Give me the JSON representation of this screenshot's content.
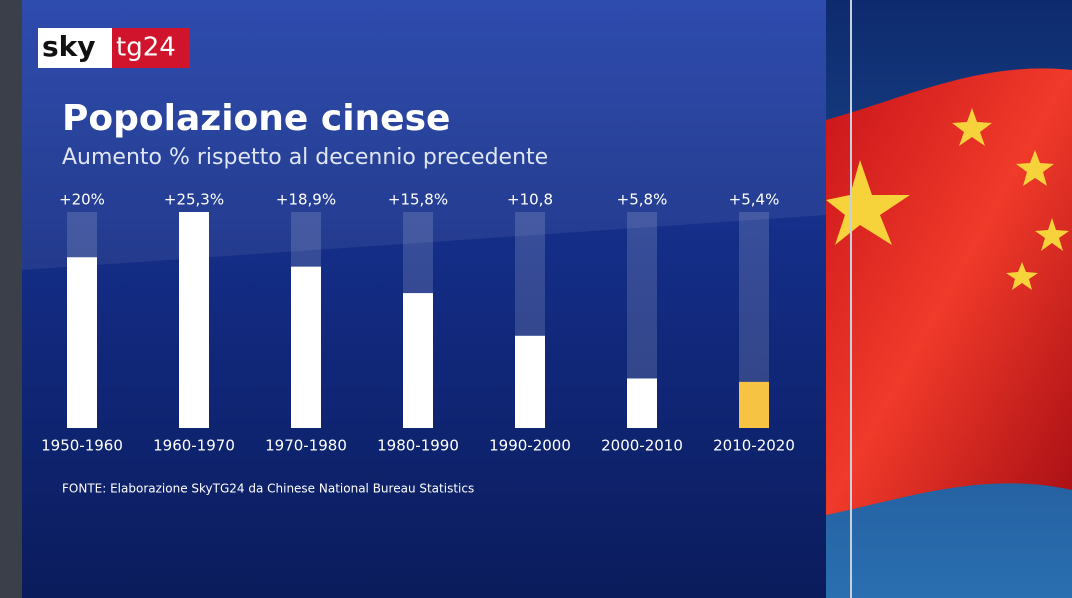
{
  "logo": {
    "left": "sky",
    "right": "tg24"
  },
  "chart_data": {
    "type": "bar",
    "title": "Popolazione cinese",
    "subtitle": "Aumento % rispetto al decennio precedente",
    "categories": [
      "1950-1960",
      "1960-1970",
      "1970-1980",
      "1980-1990",
      "1990-2000",
      "2000-2010",
      "2010-2020"
    ],
    "values": [
      20,
      25.3,
      18.9,
      15.8,
      10.8,
      5.8,
      5.4
    ],
    "value_labels": [
      "+20%",
      "+25,3%",
      "+18,9%",
      "+15,8%",
      "+10,8",
      "+5,8%",
      "+5,4%"
    ],
    "colors": [
      "#ffffff",
      "#ffffff",
      "#ffffff",
      "#ffffff",
      "#ffffff",
      "#ffffff",
      "#f6c342"
    ],
    "source": "FONTE: Elaborazione SkyTG24 da Chinese National Bureau Statistics"
  }
}
